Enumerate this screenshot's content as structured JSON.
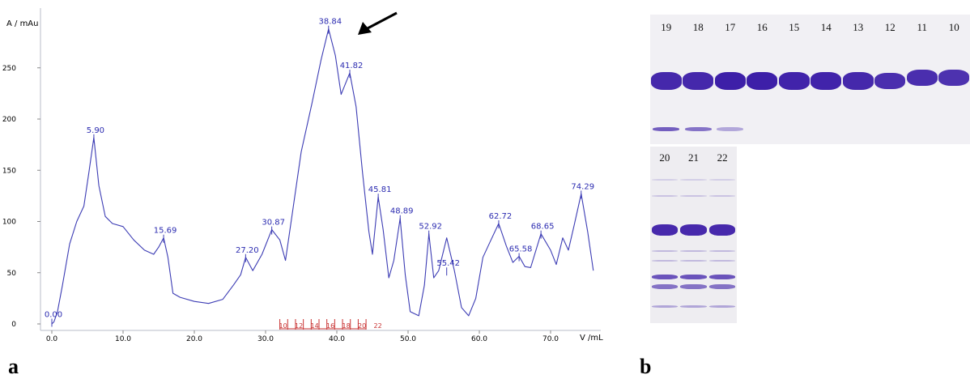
{
  "panel_a": {
    "letter": "a",
    "chart_data": {
      "type": "line",
      "title": "",
      "ylabel": "A / mAu",
      "xlabel": "V /mL",
      "xlim": [
        0,
        78
      ],
      "ylim": [
        0,
        290
      ],
      "x_ticks": [
        "0.0",
        "10.0",
        "20.0",
        "30.0",
        "40.0",
        "50.0",
        "60.0",
        "70.0"
      ],
      "y_ticks": [
        "0",
        "50",
        "100",
        "150",
        "200",
        "250"
      ],
      "grid": false,
      "line_color": "#3c3cb4",
      "series": [
        {
          "x": [
            0,
            0.3,
            0.8,
            1.5,
            2.5,
            3.5,
            4.5,
            5.2,
            5.9,
            6.6,
            7.5,
            8.5,
            10,
            11.5,
            13,
            14.3,
            15.0,
            15.69,
            16.3,
            17.0,
            18,
            20,
            22,
            24,
            25.5,
            26.5,
            27.2,
            28.2,
            29.5,
            30.87,
            32.0,
            32.8,
            33.8,
            35,
            36.5,
            37.8,
            38.84,
            39.8,
            40.6,
            41.82,
            42.7,
            43.6,
            44.5,
            45.0,
            45.81,
            46.5,
            47.3,
            48.0,
            48.89,
            49.6,
            50.3,
            51.5,
            52.3,
            52.92,
            53.6,
            54.3,
            55.42,
            56.5,
            57.5,
            58.5,
            59.5,
            60.5,
            61.5,
            62.72,
            63.8,
            64.7,
            65.58,
            66.4,
            67.2,
            68.65,
            70.0,
            70.8,
            71.7,
            72.5,
            73.3,
            74.29,
            75.2,
            76.0
          ],
          "y": [
            0,
            2,
            12,
            38,
            78,
            100,
            115,
            148,
            182,
            135,
            105,
            98,
            95,
            82,
            72,
            68,
            75,
            84,
            65,
            30,
            26,
            22,
            20,
            24,
            38,
            48,
            65,
            52,
            68,
            92,
            82,
            62,
            110,
            168,
            215,
            258,
            288,
            262,
            224,
            245,
            212,
            148,
            90,
            68,
            124,
            92,
            45,
            62,
            103,
            48,
            12,
            8,
            38,
            88,
            45,
            52,
            84,
            52,
            16,
            8,
            25,
            65,
            80,
            98,
            76,
            60,
            66,
            56,
            55,
            88,
            72,
            58,
            84,
            72,
            96,
            127,
            90,
            52
          ]
        }
      ],
      "peak_labels": [
        {
          "x": 0.0,
          "y": 2,
          "label": "0.00"
        },
        {
          "x": 5.9,
          "y": 182,
          "label": "5.90"
        },
        {
          "x": 15.69,
          "y": 84,
          "label": "15.69"
        },
        {
          "x": 27.2,
          "y": 65,
          "label": "27.20"
        },
        {
          "x": 30.87,
          "y": 92,
          "label": "30.87"
        },
        {
          "x": 38.84,
          "y": 288,
          "label": "38.84"
        },
        {
          "x": 41.82,
          "y": 245,
          "label": "41.82"
        },
        {
          "x": 45.81,
          "y": 124,
          "label": "45.81"
        },
        {
          "x": 48.89,
          "y": 103,
          "label": "48.89"
        },
        {
          "x": 52.92,
          "y": 88,
          "label": "52.92"
        },
        {
          "x": 55.42,
          "y": 52,
          "label": "55.42"
        },
        {
          "x": 62.72,
          "y": 98,
          "label": "62.72"
        },
        {
          "x": 65.58,
          "y": 66,
          "label": "65.58"
        },
        {
          "x": 68.65,
          "y": 88,
          "label": "68.65"
        },
        {
          "x": 74.29,
          "y": 127,
          "label": "74.29"
        }
      ],
      "fraction_markers": {
        "color": "#c83232",
        "positions": [
          32.0,
          33.1,
          34.2,
          35.3,
          36.4,
          37.5,
          38.6,
          39.7,
          40.8,
          41.9,
          43.0,
          44.1
        ],
        "labels": [
          "10",
          "12",
          "14",
          "16",
          "18",
          "20",
          "22"
        ]
      },
      "annotation": {
        "type": "arrow",
        "points_to_peak": "38.84"
      }
    }
  },
  "panel_b": {
    "letter": "b",
    "gel_top": {
      "lanes": [
        "19",
        "18",
        "17",
        "16",
        "15",
        "14",
        "13",
        "12",
        "11",
        "10"
      ],
      "main_band_intensity": [
        0.9,
        0.9,
        1.0,
        1.0,
        0.95,
        0.95,
        0.9,
        0.85,
        0.85,
        0.8
      ],
      "lower_band_intensity": [
        0.7,
        0.6,
        0.35,
        0,
        0,
        0,
        0,
        0,
        0,
        0
      ]
    },
    "gel_bottom": {
      "lanes": [
        "20",
        "21",
        "22"
      ]
    },
    "band_color": "#3d1fa8"
  }
}
